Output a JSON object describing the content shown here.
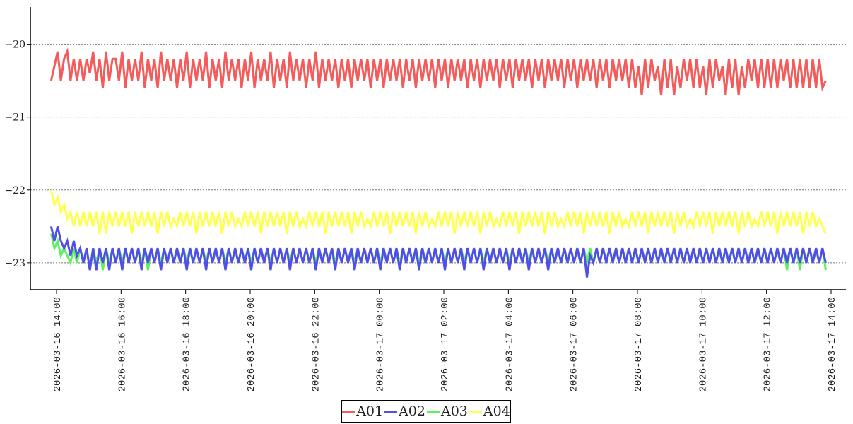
{
  "chart_data": {
    "type": "line",
    "title": "",
    "xlabel": "",
    "ylabel": "",
    "ylim": [
      -23.37,
      -19.49
    ],
    "yticks": [
      "−20",
      "−21",
      "−22",
      "−23"
    ],
    "ytick_values": [
      -20,
      -21,
      -22,
      -23
    ],
    "xticks": [
      "2026-03-16 14:00",
      "2026-03-16 16:00",
      "2026-03-16 18:00",
      "2026-03-16 20:00",
      "2026-03-16 22:00",
      "2026-03-17 00:00",
      "2026-03-17 02:00",
      "2026-03-17 04:00",
      "2026-03-17 06:00",
      "2026-03-17 08:00",
      "2026-03-17 10:00",
      "2026-03-17 12:00",
      "2026-03-17 14:00"
    ],
    "xtick_minutes": [
      0,
      120,
      240,
      360,
      480,
      600,
      720,
      840,
      960,
      1080,
      1200,
      1320,
      1440
    ],
    "x_start_minutes": -10,
    "x_step_minutes": 6,
    "grid": "horizontal-dotted",
    "legend_position": "bottom-center",
    "series": [
      {
        "name": "A01",
        "color": "#f45b5b",
        "values": [
          -20.5,
          -20.3,
          -20.1,
          -20.5,
          -20.2,
          -20.1,
          -20.5,
          -20.2,
          -20.5,
          -20.2,
          -20.5,
          -20.2,
          -20.4,
          -20.1,
          -20.5,
          -20.2,
          -20.6,
          -20.1,
          -20.5,
          -20.2,
          -20.2,
          -20.5,
          -20.1,
          -20.6,
          -20.2,
          -20.5,
          -20.2,
          -20.5,
          -20.1,
          -20.6,
          -20.2,
          -20.5,
          -20.2,
          -20.6,
          -20.1,
          -20.5,
          -20.2,
          -20.5,
          -20.2,
          -20.6,
          -20.2,
          -20.5,
          -20.1,
          -20.6,
          -20.2,
          -20.5,
          -20.2,
          -20.5,
          -20.1,
          -20.6,
          -20.2,
          -20.5,
          -20.2,
          -20.6,
          -20.1,
          -20.5,
          -20.2,
          -20.5,
          -20.2,
          -20.6,
          -20.2,
          -20.5,
          -20.1,
          -20.6,
          -20.2,
          -20.5,
          -20.2,
          -20.5,
          -20.1,
          -20.6,
          -20.2,
          -20.5,
          -20.2,
          -20.6,
          -20.1,
          -20.5,
          -20.2,
          -20.5,
          -20.2,
          -20.6,
          -20.2,
          -20.5,
          -20.1,
          -20.6,
          -20.2,
          -20.5,
          -20.2,
          -20.5,
          -20.2,
          -20.6,
          -20.2,
          -20.5,
          -20.2,
          -20.6,
          -20.2,
          -20.5,
          -20.2,
          -20.5,
          -20.2,
          -20.6,
          -20.2,
          -20.5,
          -20.2,
          -20.6,
          -20.2,
          -20.5,
          -20.2,
          -20.5,
          -20.2,
          -20.6,
          -20.2,
          -20.5,
          -20.2,
          -20.6,
          -20.2,
          -20.5,
          -20.2,
          -20.5,
          -20.2,
          -20.6,
          -20.2,
          -20.5,
          -20.2,
          -20.6,
          -20.2,
          -20.5,
          -20.2,
          -20.5,
          -20.2,
          -20.6,
          -20.2,
          -20.5,
          -20.2,
          -20.6,
          -20.2,
          -20.5,
          -20.2,
          -20.5,
          -20.2,
          -20.6,
          -20.2,
          -20.5,
          -20.2,
          -20.6,
          -20.2,
          -20.5,
          -20.2,
          -20.5,
          -20.2,
          -20.6,
          -20.2,
          -20.5,
          -20.2,
          -20.6,
          -20.2,
          -20.5,
          -20.2,
          -20.5,
          -20.2,
          -20.6,
          -20.2,
          -20.5,
          -20.2,
          -20.6,
          -20.2,
          -20.5,
          -20.2,
          -20.5,
          -20.2,
          -20.6,
          -20.2,
          -20.5,
          -20.2,
          -20.6,
          -20.2,
          -20.5,
          -20.2,
          -20.5,
          -20.2,
          -20.6,
          -20.2,
          -20.6,
          -20.3,
          -20.7,
          -20.2,
          -20.6,
          -20.2,
          -20.5,
          -20.3,
          -20.7,
          -20.2,
          -20.6,
          -20.2,
          -20.7,
          -20.3,
          -20.6,
          -20.2,
          -20.5,
          -20.2,
          -20.6,
          -20.2,
          -20.6,
          -20.3,
          -20.7,
          -20.2,
          -20.6,
          -20.2,
          -20.5,
          -20.3,
          -20.7,
          -20.2,
          -20.6,
          -20.2,
          -20.7,
          -20.3,
          -20.6,
          -20.2,
          -20.5,
          -20.2,
          -20.6,
          -20.2,
          -20.6,
          -20.2,
          -20.6,
          -20.2,
          -20.6,
          -20.2,
          -20.5,
          -20.2,
          -20.6,
          -20.2,
          -20.6,
          -20.2,
          -20.6,
          -20.2,
          -20.6,
          -20.2,
          -20.6,
          -20.2,
          -20.6,
          -20.5
        ]
      },
      {
        "name": "A02",
        "color": "#5050e8",
        "values": [
          -22.5,
          -22.7,
          -22.5,
          -22.7,
          -22.8,
          -22.7,
          -22.9,
          -22.7,
          -22.9,
          -22.8,
          -23.0,
          -22.8,
          -23.1,
          -22.8,
          -23.1,
          -22.8,
          -23.0,
          -22.8,
          -23.1,
          -22.8,
          -23.0,
          -22.8,
          -23.1,
          -22.8,
          -23.0,
          -22.8,
          -23.0,
          -22.8,
          -23.1,
          -22.8,
          -23.0,
          -22.8,
          -23.0,
          -22.8,
          -23.1,
          -22.8,
          -23.0,
          -22.8,
          -23.0,
          -22.8,
          -23.0,
          -22.8,
          -23.1,
          -22.8,
          -23.0,
          -22.8,
          -23.0,
          -22.8,
          -23.1,
          -22.8,
          -23.0,
          -22.8,
          -23.0,
          -22.8,
          -23.1,
          -22.8,
          -23.0,
          -22.8,
          -23.0,
          -22.8,
          -23.0,
          -22.8,
          -23.1,
          -22.8,
          -23.0,
          -22.8,
          -23.0,
          -22.8,
          -23.1,
          -22.8,
          -23.0,
          -22.8,
          -23.0,
          -22.8,
          -23.1,
          -22.8,
          -23.0,
          -22.8,
          -23.0,
          -22.8,
          -23.0,
          -22.8,
          -23.1,
          -22.8,
          -23.0,
          -22.8,
          -23.0,
          -22.8,
          -23.1,
          -22.8,
          -23.0,
          -22.8,
          -23.0,
          -22.8,
          -23.1,
          -22.8,
          -23.0,
          -22.8,
          -23.0,
          -22.8,
          -23.0,
          -22.8,
          -23.1,
          -22.8,
          -23.0,
          -22.8,
          -23.0,
          -22.8,
          -23.1,
          -22.8,
          -23.0,
          -22.8,
          -23.0,
          -22.8,
          -23.1,
          -22.8,
          -23.0,
          -22.8,
          -23.0,
          -22.8,
          -23.0,
          -22.8,
          -23.1,
          -22.8,
          -23.0,
          -22.8,
          -23.0,
          -22.8,
          -23.1,
          -22.8,
          -23.0,
          -22.8,
          -23.0,
          -22.8,
          -23.1,
          -22.8,
          -23.0,
          -22.8,
          -23.0,
          -22.8,
          -23.0,
          -22.8,
          -23.1,
          -22.8,
          -23.0,
          -22.8,
          -23.0,
          -22.8,
          -23.1,
          -22.8,
          -23.0,
          -22.8,
          -23.0,
          -22.8,
          -23.1,
          -22.8,
          -23.0,
          -22.8,
          -23.0,
          -22.8,
          -23.0,
          -22.8,
          -23.0,
          -22.8,
          -23.0,
          -22.8,
          -23.2,
          -22.9,
          -23.0,
          -22.8,
          -23.0,
          -22.8,
          -23.0,
          -22.8,
          -23.0,
          -22.8,
          -23.0,
          -22.8,
          -23.0,
          -22.8,
          -23.0,
          -22.8,
          -23.0,
          -22.8,
          -23.0,
          -22.8,
          -23.0,
          -22.8,
          -23.0,
          -22.8,
          -23.0,
          -22.8,
          -23.0,
          -22.8,
          -23.0,
          -22.8,
          -23.0,
          -22.8,
          -23.0,
          -22.8,
          -23.0,
          -22.8,
          -23.0,
          -22.8,
          -23.0,
          -22.8,
          -23.0,
          -22.8,
          -23.0,
          -22.8,
          -23.0,
          -22.8,
          -23.0,
          -22.8,
          -23.0,
          -22.8,
          -23.0,
          -22.8,
          -23.0,
          -22.8,
          -23.0,
          -22.8,
          -23.0,
          -22.8,
          -23.0,
          -22.8,
          -23.0,
          -22.8,
          -23.0,
          -22.8,
          -23.0,
          -22.8,
          -23.0,
          -22.8,
          -23.0,
          -22.8,
          -23.0,
          -22.8,
          -23.0,
          -22.8,
          -23.0
        ]
      },
      {
        "name": "A03",
        "color": "#5ef05e",
        "values": [
          -22.6,
          -22.8,
          -22.7,
          -22.9,
          -22.8,
          -22.9,
          -23.0,
          -22.8,
          -23.0,
          -22.8,
          -23.0,
          -22.8,
          -23.1,
          -22.8,
          -23.0,
          -22.8,
          -23.1,
          -22.8,
          -23.0,
          -22.8,
          -23.0,
          -22.8,
          -23.0,
          -22.8,
          -23.0,
          -22.8,
          -23.0,
          -22.8,
          -23.0,
          -22.8,
          -23.1,
          -22.8,
          -23.0,
          -22.8,
          -23.0,
          -22.8,
          -23.0,
          -22.8,
          -23.0,
          -22.8,
          -23.0,
          -22.8,
          -23.0,
          -22.8,
          -23.0,
          -22.8,
          -23.0,
          -22.8,
          -23.0,
          -22.8,
          -23.0,
          -22.8,
          -23.0,
          -22.8,
          -23.0,
          -22.8,
          -23.0,
          -22.8,
          -23.0,
          -22.8,
          -23.0,
          -22.8,
          -23.0,
          -22.8,
          -23.0,
          -22.8,
          -23.0,
          -22.8,
          -23.0,
          -22.8,
          -23.0,
          -22.8,
          -23.0,
          -22.8,
          -23.0,
          -22.8,
          -23.0,
          -22.8,
          -23.0,
          -22.8,
          -23.0,
          -22.8,
          -23.0,
          -22.8,
          -23.0,
          -22.8,
          -23.0,
          -22.8,
          -23.0,
          -22.8,
          -23.0,
          -22.8,
          -23.0,
          -22.8,
          -23.0,
          -22.8,
          -23.0,
          -22.8,
          -23.0,
          -22.8,
          -23.0,
          -22.8,
          -23.0,
          -22.8,
          -23.0,
          -22.8,
          -23.0,
          -22.8,
          -23.0,
          -22.8,
          -23.0,
          -22.8,
          -23.0,
          -22.8,
          -23.0,
          -22.8,
          -23.0,
          -22.8,
          -23.0,
          -22.8,
          -23.0,
          -22.8,
          -23.0,
          -22.8,
          -23.0,
          -22.8,
          -23.0,
          -22.8,
          -23.0,
          -22.8,
          -23.0,
          -22.8,
          -23.0,
          -22.8,
          -23.0,
          -22.8,
          -23.0,
          -22.8,
          -23.0,
          -22.8,
          -23.0,
          -22.8,
          -23.0,
          -22.8,
          -23.0,
          -22.8,
          -23.0,
          -22.8,
          -23.0,
          -22.8,
          -23.0,
          -22.8,
          -23.0,
          -22.8,
          -23.0,
          -22.8,
          -23.0,
          -22.8,
          -23.0,
          -22.8,
          -23.0,
          -22.8,
          -23.0,
          -22.8,
          -23.0,
          -22.8,
          -23.0,
          -22.8,
          -23.0,
          -22.8,
          -23.0,
          -22.8,
          -23.0,
          -22.8,
          -23.0,
          -22.8,
          -23.0,
          -22.8,
          -23.0,
          -22.8,
          -23.0,
          -22.8,
          -23.0,
          -22.8,
          -23.0,
          -22.8,
          -23.0,
          -22.8,
          -23.0,
          -22.8,
          -23.0,
          -22.8,
          -23.0,
          -22.8,
          -23.0,
          -22.8,
          -23.0,
          -22.8,
          -23.0,
          -22.8,
          -23.0,
          -22.8,
          -23.0,
          -22.8,
          -23.0,
          -22.8,
          -23.0,
          -22.8,
          -23.0,
          -22.8,
          -23.0,
          -22.8,
          -23.0,
          -22.8,
          -23.0,
          -22.8,
          -23.0,
          -22.8,
          -23.0,
          -22.8,
          -23.0,
          -22.8,
          -23.0,
          -22.8,
          -23.0,
          -22.8,
          -23.0,
          -22.8,
          -23.1,
          -22.8,
          -23.0,
          -22.8,
          -23.1,
          -22.8,
          -23.0,
          -22.8,
          -23.0,
          -22.8,
          -23.0,
          -22.8,
          -23.1
        ]
      },
      {
        "name": "A04",
        "color": "#ffff50",
        "values": [
          -22.0,
          -22.2,
          -22.1,
          -22.3,
          -22.2,
          -22.4,
          -22.3,
          -22.5,
          -22.3,
          -22.5,
          -22.3,
          -22.5,
          -22.3,
          -22.5,
          -22.3,
          -22.6,
          -22.3,
          -22.6,
          -22.3,
          -22.5,
          -22.3,
          -22.5,
          -22.3,
          -22.5,
          -22.3,
          -22.6,
          -22.3,
          -22.5,
          -22.3,
          -22.5,
          -22.3,
          -22.5,
          -22.3,
          -22.6,
          -22.3,
          -22.5,
          -22.3,
          -22.5,
          -22.4,
          -22.5,
          -22.3,
          -22.5,
          -22.3,
          -22.5,
          -22.3,
          -22.6,
          -22.3,
          -22.5,
          -22.3,
          -22.5,
          -22.3,
          -22.5,
          -22.3,
          -22.6,
          -22.3,
          -22.5,
          -22.3,
          -22.5,
          -22.4,
          -22.5,
          -22.3,
          -22.5,
          -22.3,
          -22.5,
          -22.3,
          -22.6,
          -22.3,
          -22.5,
          -22.3,
          -22.5,
          -22.3,
          -22.5,
          -22.3,
          -22.6,
          -22.3,
          -22.5,
          -22.3,
          -22.5,
          -22.4,
          -22.5,
          -22.3,
          -22.5,
          -22.3,
          -22.5,
          -22.3,
          -22.6,
          -22.3,
          -22.5,
          -22.3,
          -22.5,
          -22.3,
          -22.5,
          -22.3,
          -22.6,
          -22.3,
          -22.5,
          -22.3,
          -22.5,
          -22.4,
          -22.5,
          -22.3,
          -22.5,
          -22.3,
          -22.5,
          -22.3,
          -22.6,
          -22.3,
          -22.5,
          -22.3,
          -22.5,
          -22.3,
          -22.5,
          -22.3,
          -22.6,
          -22.3,
          -22.5,
          -22.3,
          -22.5,
          -22.4,
          -22.5,
          -22.3,
          -22.5,
          -22.3,
          -22.5,
          -22.3,
          -22.6,
          -22.3,
          -22.5,
          -22.3,
          -22.5,
          -22.3,
          -22.5,
          -22.3,
          -22.6,
          -22.3,
          -22.5,
          -22.3,
          -22.5,
          -22.4,
          -22.5,
          -22.3,
          -22.5,
          -22.3,
          -22.5,
          -22.3,
          -22.6,
          -22.3,
          -22.5,
          -22.3,
          -22.5,
          -22.3,
          -22.5,
          -22.3,
          -22.6,
          -22.3,
          -22.5,
          -22.3,
          -22.5,
          -22.4,
          -22.5,
          -22.3,
          -22.5,
          -22.3,
          -22.5,
          -22.3,
          -22.6,
          -22.3,
          -22.5,
          -22.3,
          -22.5,
          -22.3,
          -22.5,
          -22.3,
          -22.6,
          -22.3,
          -22.5,
          -22.3,
          -22.5,
          -22.4,
          -22.5,
          -22.3,
          -22.5,
          -22.3,
          -22.5,
          -22.3,
          -22.6,
          -22.3,
          -22.5,
          -22.3,
          -22.5,
          -22.3,
          -22.5,
          -22.3,
          -22.6,
          -22.3,
          -22.5,
          -22.3,
          -22.5,
          -22.4,
          -22.5,
          -22.3,
          -22.5,
          -22.3,
          -22.5,
          -22.3,
          -22.6,
          -22.3,
          -22.5,
          -22.3,
          -22.5,
          -22.3,
          -22.5,
          -22.3,
          -22.6,
          -22.3,
          -22.5,
          -22.3,
          -22.5,
          -22.4,
          -22.5,
          -22.3,
          -22.5,
          -22.3,
          -22.5,
          -22.3,
          -22.6,
          -22.3,
          -22.5,
          -22.3,
          -22.5,
          -22.3,
          -22.5,
          -22.3,
          -22.6,
          -22.3,
          -22.5,
          -22.3,
          -22.5,
          -22.4,
          -22.5,
          -22.6
        ]
      }
    ]
  }
}
